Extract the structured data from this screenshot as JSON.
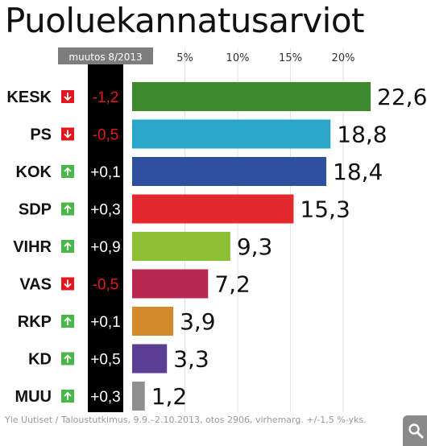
{
  "title": "Puoluekannatusarviot",
  "source": "Yle Uutiset / Taloustutkimus, 9.9.–2.10.2013, otos 2906, virhemarg. +/-1,5 %-yks.",
  "zoom_icon": "magnifier-icon",
  "colors": {
    "up": "#49b849",
    "down": "#e3171e",
    "change_column": "#000000",
    "header_tab": "#7d7d7d",
    "grid": "#e3e3e3"
  },
  "chart_data": {
    "type": "bar",
    "orientation": "horizontal",
    "change_header": "muutos 8/2013",
    "xlim": [
      0,
      25
    ],
    "ticks": [
      {
        "value": 5,
        "label": "5%"
      },
      {
        "value": 10,
        "label": "10%"
      },
      {
        "value": 15,
        "label": "15%"
      },
      {
        "value": 20,
        "label": "20%"
      }
    ],
    "grid": true,
    "items": [
      {
        "party": "KESK",
        "value": 22.6,
        "value_label": "22,6",
        "change": "-1,2",
        "direction": "down",
        "color": "#3c8a2e"
      },
      {
        "party": "PS",
        "value": 18.8,
        "value_label": "18,8",
        "change": "-0,5",
        "direction": "down",
        "color": "#2aa7c8"
      },
      {
        "party": "KOK",
        "value": 18.4,
        "value_label": "18,4",
        "change": "+0,1",
        "direction": "up",
        "color": "#2f4f9f"
      },
      {
        "party": "SDP",
        "value": 15.3,
        "value_label": "15,3",
        "change": "+0,3",
        "direction": "up",
        "color": "#e3282e"
      },
      {
        "party": "VIHR",
        "value": 9.3,
        "value_label": "9,3",
        "change": "+0,9",
        "direction": "up",
        "color": "#8dbf34"
      },
      {
        "party": "VAS",
        "value": 7.2,
        "value_label": "7,2",
        "change": "-0,5",
        "direction": "down",
        "color": "#b8284f"
      },
      {
        "party": "RKP",
        "value": 3.9,
        "value_label": "3,9",
        "change": "+0,1",
        "direction": "up",
        "color": "#d28b2a"
      },
      {
        "party": "KD",
        "value": 3.3,
        "value_label": "3,3",
        "change": "+0,5",
        "direction": "up",
        "color": "#5b3f94"
      },
      {
        "party": "MUU",
        "value": 1.2,
        "value_label": "1,2",
        "change": "+0,3",
        "direction": "up",
        "color": "#8e8e8e"
      }
    ]
  }
}
